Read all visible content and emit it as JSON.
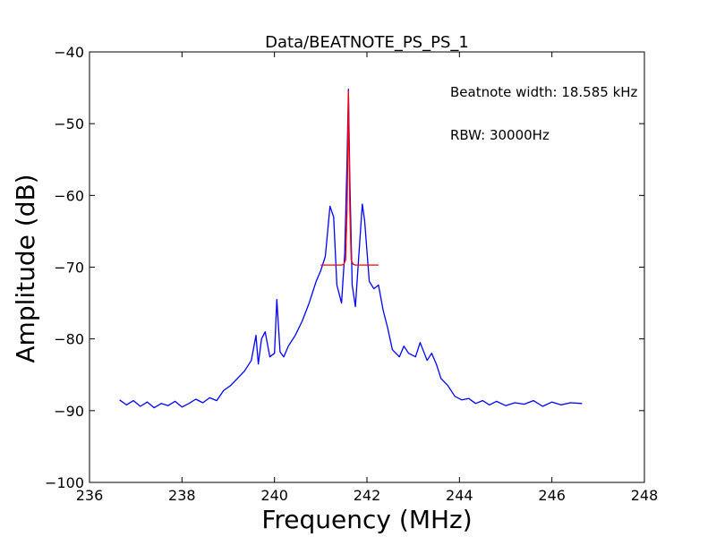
{
  "chart_data": {
    "type": "line",
    "title": "Data/BEATNOTE_PS_PS_1",
    "xlabel": "Frequency (MHz)",
    "ylabel": "Amplitude (dB)",
    "xlim": [
      236,
      248
    ],
    "ylim": [
      -100,
      -40
    ],
    "xticks": [
      236,
      238,
      240,
      242,
      244,
      246,
      248
    ],
    "xtick_labels": [
      "236",
      "238",
      "240",
      "242",
      "244",
      "246",
      "248"
    ],
    "yticks": [
      -100,
      -90,
      -80,
      -70,
      -60,
      -50,
      -40
    ],
    "ytick_labels": [
      "−100",
      "−90",
      "−80",
      "−70",
      "−60",
      "−50",
      "−40"
    ],
    "grid": false,
    "annotations": [
      "Beatnote width: 18.585 kHz",
      "RBW: 30000Hz"
    ],
    "colors": {
      "spectrum": "#0000ff",
      "fit": "#ff0000"
    },
    "series": [
      {
        "x": [
          236.65,
          236.8,
          236.95,
          237.1,
          237.25,
          237.4,
          237.55,
          237.7,
          237.85,
          238.0,
          238.15,
          238.3,
          238.45,
          238.6,
          238.75,
          238.9,
          239.05,
          239.2,
          239.35,
          239.5,
          239.6,
          239.65,
          239.72,
          239.8,
          239.9,
          240.0,
          240.05,
          240.12,
          240.2,
          240.3,
          240.45,
          240.6,
          240.75,
          240.9,
          241.0,
          241.1,
          241.2,
          241.28,
          241.35,
          241.45,
          241.52,
          241.57,
          241.6,
          241.63,
          241.68,
          241.75,
          241.85,
          241.9,
          241.95,
          242.05,
          242.15,
          242.25,
          242.35,
          242.45,
          242.55,
          242.7,
          242.8,
          242.9,
          243.05,
          243.15,
          243.3,
          243.4,
          243.5,
          243.6,
          243.75,
          243.9,
          244.05,
          244.2,
          244.35,
          244.5,
          244.65,
          244.8,
          245.0,
          245.2,
          245.4,
          245.6,
          245.8,
          246.0,
          246.2,
          246.4,
          246.65
        ],
        "y": [
          -88.5,
          -89.2,
          -88.6,
          -89.4,
          -88.8,
          -89.6,
          -89.0,
          -89.3,
          -88.7,
          -89.5,
          -89.0,
          -88.4,
          -88.9,
          -88.2,
          -88.6,
          -87.2,
          -86.5,
          -85.5,
          -84.5,
          -83.0,
          -79.5,
          -83.5,
          -80.0,
          -79.0,
          -82.5,
          -82.0,
          -74.5,
          -81.8,
          -82.5,
          -81.0,
          -79.5,
          -77.5,
          -75.0,
          -72.0,
          -70.5,
          -68.5,
          -61.5,
          -63.0,
          -72.5,
          -75.0,
          -68.0,
          -55.0,
          -45.2,
          -58.0,
          -72.5,
          -75.5,
          -66.0,
          -61.2,
          -63.5,
          -72.0,
          -73.0,
          -72.5,
          -76.0,
          -78.5,
          -81.5,
          -82.5,
          -81.0,
          -82.0,
          -82.5,
          -80.5,
          -83.0,
          -82.0,
          -83.5,
          -85.5,
          -86.5,
          -88.0,
          -88.5,
          -88.3,
          -89.0,
          -88.6,
          -89.2,
          -88.7,
          -89.3,
          -88.9,
          -89.1,
          -88.6,
          -89.4,
          -88.8,
          -89.2,
          -88.9,
          -89.0
        ]
      },
      {
        "x": [
          241.0,
          241.3,
          241.45,
          241.5,
          241.54,
          241.57,
          241.59,
          241.6,
          241.61,
          241.63,
          241.66,
          241.7,
          241.75,
          241.9,
          242.25
        ],
        "y": [
          -69.7,
          -69.7,
          -69.7,
          -69.6,
          -69.0,
          -62.0,
          -52.0,
          -45.5,
          -52.0,
          -62.0,
          -69.0,
          -69.6,
          -69.7,
          -69.7,
          -69.7
        ]
      }
    ]
  }
}
